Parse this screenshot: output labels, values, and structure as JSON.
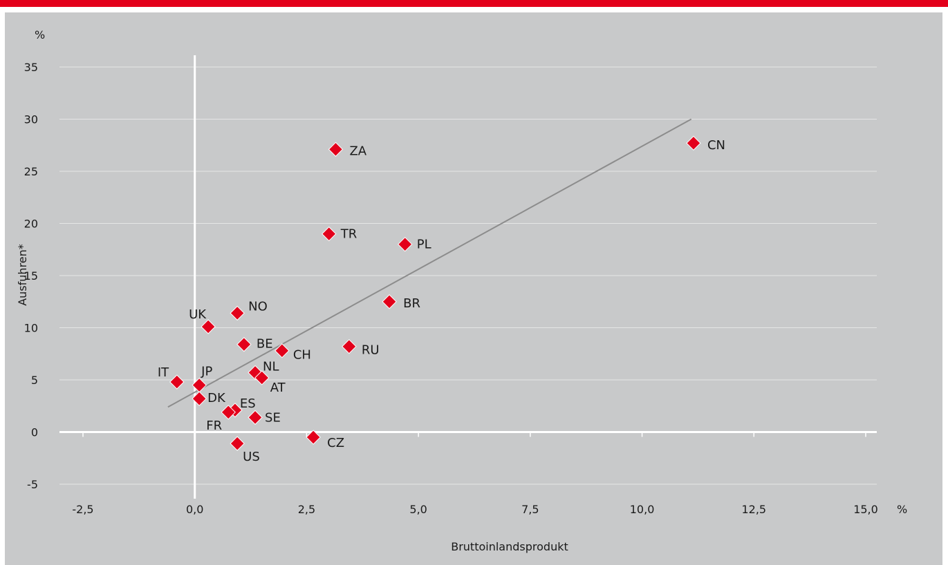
{
  "chart_data": {
    "type": "scatter",
    "title": "",
    "xlabel": "Bruttoinlandsprodukt",
    "ylabel": "Ausfuhren*",
    "x_unit": "%",
    "y_unit": "%",
    "xlim": [
      -2.5,
      15.0
    ],
    "ylim": [
      -5,
      35
    ],
    "x_ticks": [
      "-2,5",
      "0,0",
      "2,5",
      "5,0",
      "7,5",
      "10,0",
      "12,5",
      "15,0"
    ],
    "y_ticks": [
      "-5",
      "0",
      "5",
      "10",
      "15",
      "20",
      "25",
      "30",
      "35"
    ],
    "grid": "horizontal",
    "marker_color": "#e3001b",
    "trendline": {
      "x": [
        -0.6,
        11.1
      ],
      "y": [
        2.4,
        30.0
      ],
      "color": "#8c8c8c"
    },
    "points": [
      {
        "label": "CN",
        "x": 11.15,
        "y": 27.7
      },
      {
        "label": "ZA",
        "x": 3.15,
        "y": 27.1
      },
      {
        "label": "TR",
        "x": 3.0,
        "y": 19.0
      },
      {
        "label": "PL",
        "x": 4.7,
        "y": 18.0
      },
      {
        "label": "BR",
        "x": 4.35,
        "y": 12.5
      },
      {
        "label": "RU",
        "x": 3.45,
        "y": 8.2
      },
      {
        "label": "NO",
        "x": 0.95,
        "y": 11.4
      },
      {
        "label": "UK",
        "x": 0.3,
        "y": 10.1
      },
      {
        "label": "BE",
        "x": 1.1,
        "y": 8.4
      },
      {
        "label": "CH",
        "x": 1.95,
        "y": 7.8
      },
      {
        "label": "NL",
        "x": 1.35,
        "y": 5.7
      },
      {
        "label": "AT",
        "x": 1.5,
        "y": 5.2
      },
      {
        "label": "IT",
        "x": -0.4,
        "y": 4.8
      },
      {
        "label": "JP",
        "x": 0.1,
        "y": 4.5
      },
      {
        "label": "DK",
        "x": 0.1,
        "y": 3.2
      },
      {
        "label": "ES",
        "x": 0.9,
        "y": 2.1
      },
      {
        "label": "FR",
        "x": 0.75,
        "y": 1.9
      },
      {
        "label": "SE",
        "x": 1.35,
        "y": 1.4
      },
      {
        "label": "CZ",
        "x": 2.65,
        "y": -0.5
      },
      {
        "label": "US",
        "x": 0.95,
        "y": -1.1
      }
    ]
  }
}
